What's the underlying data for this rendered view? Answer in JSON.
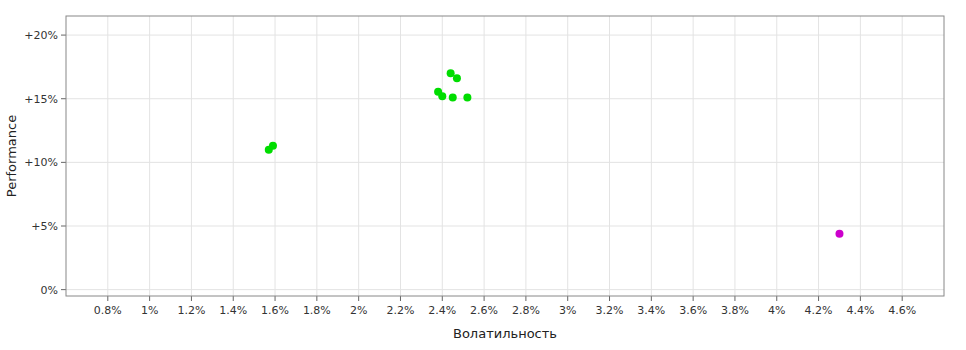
{
  "chart_data": {
    "type": "scatter",
    "xlabel": "Волатильность",
    "ylabel": "Performance",
    "xlim": [
      0.006,
      0.048
    ],
    "ylim": [
      -0.005,
      0.215
    ],
    "xticks": [
      {
        "value": 0.008,
        "label": "0.8%"
      },
      {
        "value": 0.01,
        "label": "1%"
      },
      {
        "value": 0.012,
        "label": "1.2%"
      },
      {
        "value": 0.014,
        "label": "1.4%"
      },
      {
        "value": 0.016,
        "label": "1.6%"
      },
      {
        "value": 0.018,
        "label": "1.8%"
      },
      {
        "value": 0.02,
        "label": "2%"
      },
      {
        "value": 0.022,
        "label": "2.2%"
      },
      {
        "value": 0.024,
        "label": "2.4%"
      },
      {
        "value": 0.026,
        "label": "2.6%"
      },
      {
        "value": 0.028,
        "label": "2.8%"
      },
      {
        "value": 0.03,
        "label": "3%"
      },
      {
        "value": 0.032,
        "label": "3.2%"
      },
      {
        "value": 0.034,
        "label": "3.4%"
      },
      {
        "value": 0.036,
        "label": "3.6%"
      },
      {
        "value": 0.038,
        "label": "3.8%"
      },
      {
        "value": 0.04,
        "label": "4%"
      },
      {
        "value": 0.042,
        "label": "4.2%"
      },
      {
        "value": 0.044,
        "label": "4.4%"
      },
      {
        "value": 0.046,
        "label": "4.6%"
      }
    ],
    "yticks": [
      {
        "value": 0.0,
        "label": "0%"
      },
      {
        "value": 0.05,
        "label": "+5%"
      },
      {
        "value": 0.1,
        "label": "+10%"
      },
      {
        "value": 0.15,
        "label": "+15%"
      },
      {
        "value": 0.2,
        "label": "+20%"
      }
    ],
    "grid": true,
    "series": [
      {
        "color": "#00dd00",
        "x": [
          0.0244,
          0.0247,
          0.0238,
          0.024,
          0.0245,
          0.0252,
          0.0159,
          0.0157
        ],
        "values": [
          0.17,
          0.166,
          0.1555,
          0.152,
          0.151,
          0.151,
          0.113,
          0.11
        ]
      },
      {
        "color": "#cc00cc",
        "x": [
          0.043
        ],
        "values": [
          0.044
        ]
      }
    ]
  }
}
